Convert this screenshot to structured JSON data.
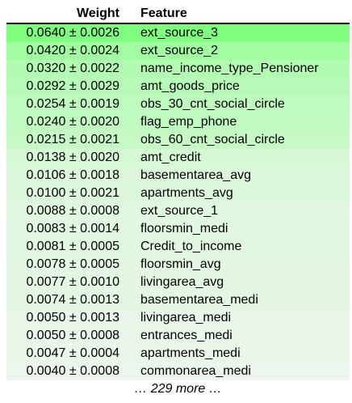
{
  "table": {
    "headers": {
      "weight": "Weight",
      "feature": "Feature"
    },
    "rows": [
      {
        "weight": "0.0640 ± 0.0026",
        "feature": "ext_source_3",
        "bg": "#80ff80"
      },
      {
        "weight": "0.0420 ± 0.0024",
        "feature": "ext_source_2",
        "bg": "#a2fda2"
      },
      {
        "weight": "0.0320 ± 0.0022",
        "feature": "name_income_type_Pensioner",
        "bg": "#b3fbb3"
      },
      {
        "weight": "0.0292 ± 0.0029",
        "feature": "amt_goods_price",
        "bg": "#b8fab8"
      },
      {
        "weight": "0.0254 ± 0.0019",
        "feature": "obs_30_cnt_social_circle",
        "bg": "#bffabf"
      },
      {
        "weight": "0.0240 ± 0.0020",
        "feature": "flag_emp_phone",
        "bg": "#c1fac1"
      },
      {
        "weight": "0.0215 ± 0.0021",
        "feature": "obs_60_cnt_social_circle",
        "bg": "#c6f9c6"
      },
      {
        "weight": "0.0138 ± 0.0020",
        "feature": "amt_credit",
        "bg": "#d5f8d5"
      },
      {
        "weight": "0.0106 ± 0.0018",
        "feature": "basementarea_avg",
        "bg": "#dcf7dc"
      },
      {
        "weight": "0.0100 ± 0.0021",
        "feature": "apartments_avg",
        "bg": "#ddf7dd"
      },
      {
        "weight": "0.0088 ± 0.0008",
        "feature": "ext_source_1",
        "bg": "#e0f7e0"
      },
      {
        "weight": "0.0083 ± 0.0014",
        "feature": "floorsmin_medi",
        "bg": "#e1f7e1"
      },
      {
        "weight": "0.0081 ± 0.0005",
        "feature": "Credit_to_income",
        "bg": "#e2f7e2"
      },
      {
        "weight": "0.0078 ± 0.0005",
        "feature": "floorsmin_avg",
        "bg": "#e3f7e3"
      },
      {
        "weight": "0.0077 ± 0.0010",
        "feature": "livingarea_avg",
        "bg": "#e3f7e3"
      },
      {
        "weight": "0.0074 ± 0.0013",
        "feature": "basementarea_medi",
        "bg": "#e4f7e4"
      },
      {
        "weight": "0.0050 ± 0.0013",
        "feature": "livingarea_medi",
        "bg": "#e9f6e9"
      },
      {
        "weight": "0.0050 ± 0.0008",
        "feature": "entrances_medi",
        "bg": "#e9f6e9"
      },
      {
        "weight": "0.0047 ± 0.0004",
        "feature": "apartments_medi",
        "bg": "#eaf6ea"
      },
      {
        "weight": "0.0040 ± 0.0008",
        "feature": "commonarea_medi",
        "bg": "#ecf6ec"
      }
    ],
    "more_label": "… 229 more …"
  }
}
